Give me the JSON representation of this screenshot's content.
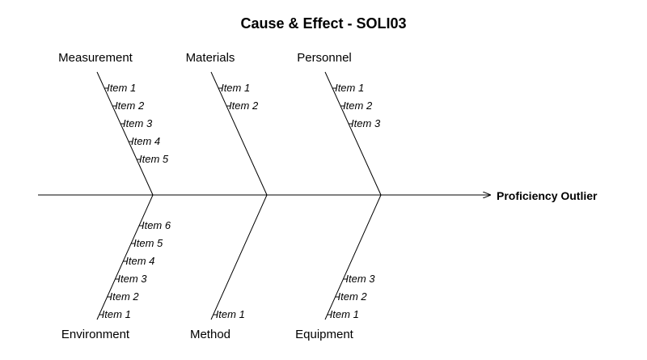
{
  "title": "Cause & Effect - SOLI03",
  "effect": "Proficiency Outlier",
  "colors": {
    "line": "#000000",
    "text": "#000000",
    "background": "#ffffff"
  },
  "categories": [
    {
      "name": "Measurement",
      "items": [
        "Item 1",
        "Item 2",
        "Item 3",
        "Item 4",
        "Item 5"
      ]
    },
    {
      "name": "Materials",
      "items": [
        "Item 1",
        "Item 2"
      ]
    },
    {
      "name": "Personnel",
      "items": [
        "Item 1",
        "Item 2",
        "Item 3"
      ]
    },
    {
      "name": "Environment",
      "items": [
        "Item 6",
        "Item 5",
        "Item 4",
        "Item 3",
        "Item 2",
        "Item 1"
      ]
    },
    {
      "name": "Method",
      "items": [
        "Item 1"
      ]
    },
    {
      "name": "Equipment",
      "items": [
        "Item 3",
        "Item 2",
        "Item 1"
      ]
    }
  ]
}
